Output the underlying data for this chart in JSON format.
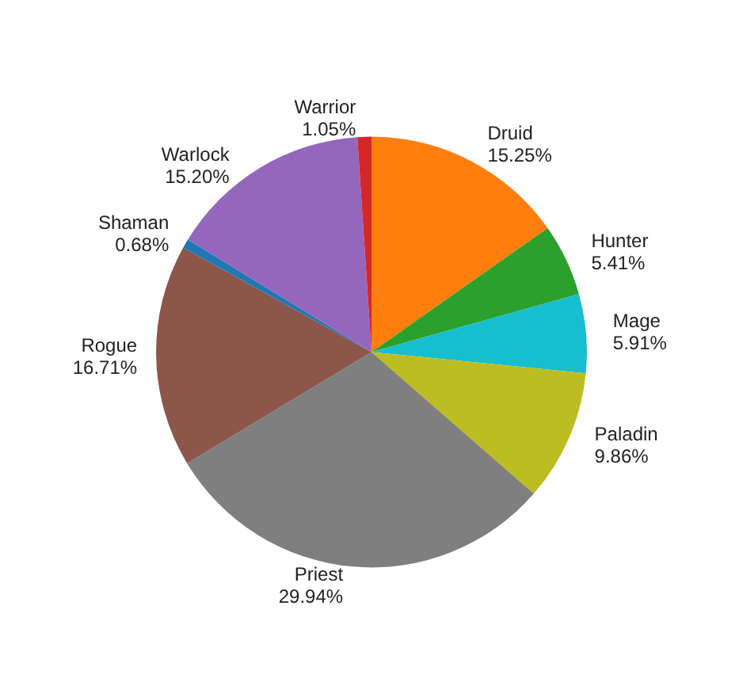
{
  "chart_data": {
    "type": "pie",
    "categories": [
      "Druid",
      "Hunter",
      "Mage",
      "Paladin",
      "Priest",
      "Rogue",
      "Shaman",
      "Warlock",
      "Warrior"
    ],
    "values": [
      15.25,
      5.41,
      5.91,
      9.86,
      29.94,
      16.71,
      0.68,
      15.2,
      1.05
    ],
    "value_labels": [
      "15.25%",
      "5.41%",
      "5.91%",
      "9.86%",
      "29.94%",
      "16.71%",
      "0.68%",
      "15.20%",
      "1.05%"
    ],
    "colors": [
      "#ff7f0e",
      "#2ca02c",
      "#17becf",
      "#bcbd22",
      "#7f7f7f",
      "#8c564b",
      "#1f77b4",
      "#9467bd",
      "#d62728"
    ],
    "legend": false
  }
}
